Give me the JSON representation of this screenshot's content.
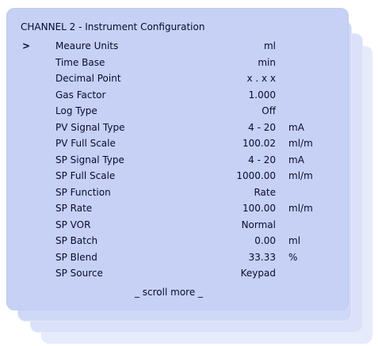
{
  "title": "CHANNEL 2 - Instrument Configuration",
  "cursor": ">",
  "rows": [
    {
      "label": "Meaure Units",
      "value": "ml"
    },
    {
      "label": "Time Base",
      "value": "min"
    },
    {
      "label": "Decimal Point",
      "value": "x . x x"
    },
    {
      "label": "Gas Factor",
      "value": "1.000"
    },
    {
      "label": "Log Type",
      "value": "Off"
    },
    {
      "label": "PV Signal Type",
      "value": "4 - 20",
      "unit": "mA"
    },
    {
      "label": "PV Full Scale",
      "value": "100.02",
      "unit": "ml/m"
    },
    {
      "label": "SP Signal Type",
      "value": "4 - 20",
      "unit": "mA"
    },
    {
      "label": "SP Full Scale",
      "value": "1000.00",
      "unit": "ml/m"
    },
    {
      "label": "SP Function",
      "value": "Rate"
    },
    {
      "label": "SP Rate",
      "value": "100.00",
      "unit": "ml/m"
    },
    {
      "label": "SP VOR",
      "value": "Normal"
    },
    {
      "label": "SP Batch",
      "value": "0.00",
      "unit": "ml"
    },
    {
      "label": "SP Blend",
      "value": "33.33",
      "unit": "%"
    },
    {
      "label": "SP Source",
      "value": "Keypad"
    }
  ],
  "footer": "_ scroll more _"
}
